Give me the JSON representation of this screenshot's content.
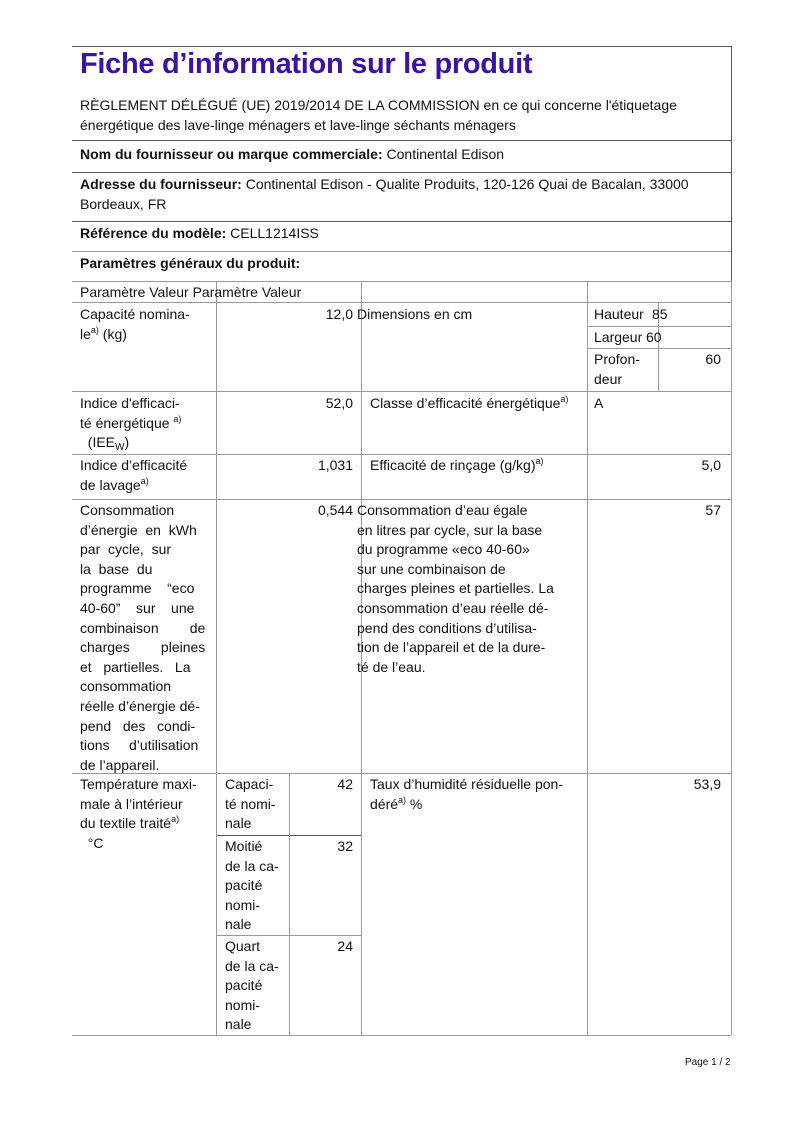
{
  "title": "Fiche d’information sur le produit",
  "regulation": "RÈGLEMENT DÉLÉGUÉ (UE) 2019/2014 DE LA COMMISSION en ce qui concerne l'étiquetage\nénergétique des lave-linge ménagers et lave-linge séchants ménagers",
  "supplier": {
    "label": "Nom du fournisseur ou marque commerciale:",
    "value": " Continental Edison"
  },
  "address": {
    "label": "Adresse du fournisseur:",
    "value": " Continental Edison - Qualite Produits, 120-126 Quai de Bacalan, 33000\nBordeaux, FR"
  },
  "model": {
    "label": "Référence du modèle:",
    "value": " CELL1214ISS"
  },
  "general": {
    "label": "Paramètres généraux du produit:"
  },
  "table": {
    "header": "Paramètre Valeur Paramètre Valeur",
    "note": "a)",
    "capacity": {
      "label1": "Capacité  nomina-\nle",
      "label2": "  (kg)",
      "value": "12,0"
    },
    "dimensions": {
      "label": "Dimensions en cm",
      "height_label": "Hauteur",
      "height": "85",
      "width_label": "Largeur",
      "width": "60",
      "depth_label": "Profon-\ndeur",
      "depth": "60"
    },
    "eei": {
      "label1": "Indice  d'efficaci-\nté  énergétique  ",
      "label2": "(IEE",
      "label_sub": "W",
      "label3": ")",
      "value": "52,0"
    },
    "energy_class": {
      "label": "Classe d’efficacité énergétique",
      "value": "A"
    },
    "washing": {
      "label": "Indice  d’efficacité\nde lavage",
      "value": "1,031"
    },
    "rinsing": {
      "label": "Efficacité de rinçage (g/kg)",
      "value": "5,0"
    },
    "energy": {
      "label": "Consommation\nd’énergie  en  kWh\npar  cycle,  sur\nla  base  du\nprogramme    “eco\n40-60”    sur    une\ncombinaison        de\ncharges        pleines\net   partielles.   La\nconsommation\nréelle d’énergie dé-\npend   des   condi-\ntions     d’utilisation\nde l’appareil.",
      "value": "0,544"
    },
    "water": {
      "label": "Consommation d’eau égale\nen litres par cycle, sur la base\ndu programme «eco 40-60»\nsur une combinaison de\ncharges pleines et partielles. La\nconsommation d’eau réelle dé-\npend des conditions d’utilisa-\ntion de l’appareil et de la dure-\nté de l’eau.",
      "value": "57"
    },
    "temperature": {
      "label1": "Température  maxi-\nmale  à  l’intérieur\ndu  textile  traité",
      "label2": "°C",
      "rows": [
        {
          "label": "Capaci-\nté nomi-\nnale",
          "value": "42"
        },
        {
          "label": "Moitié\nde la ca-\npacité\nnomi-\nnale",
          "value": "32"
        },
        {
          "label": "Quart\nde la ca-\npacité\nnomi-\nnale",
          "value": "24"
        }
      ]
    },
    "humidity": {
      "label1": "Taux d’humidité résiduelle pon-\ndéré",
      "label2": "  %",
      "value": "53,9"
    }
  },
  "footer": {
    "page": "Page 1 / 2"
  }
}
